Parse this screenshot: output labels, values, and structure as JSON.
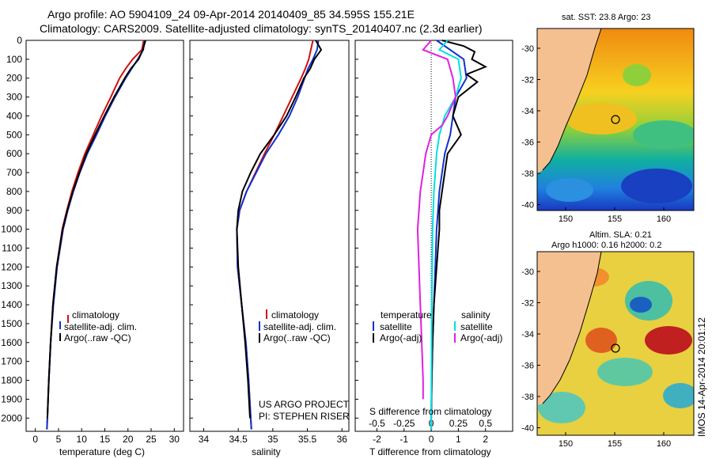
{
  "title_line1": "Argo profile: AO 5904109_24 09-Apr-2014 20140409_85 34.595S 155.21E",
  "title_line2": "Climatology: CARS2009. Satellite-adjusted climatology: synTS_20140407.nc (2.3d earlier)",
  "depth_ticks": [
    0,
    100,
    200,
    300,
    400,
    500,
    600,
    700,
    800,
    900,
    1000,
    1100,
    1200,
    1300,
    1400,
    1500,
    1600,
    1700,
    1800,
    1900,
    2000
  ],
  "colors": {
    "clim": "#d01010",
    "sat": "#1030d0",
    "argo": "#000000",
    "sal_sat": "#00e0e0",
    "sal_argo": "#e020e0"
  },
  "chart_data": [
    {
      "type": "line",
      "panel": "temperature",
      "xlabel": "temperature (deg C)",
      "xticks": [
        0,
        5,
        10,
        15,
        20,
        25,
        30
      ],
      "xlim": [
        -2,
        32
      ],
      "ylim": [
        2070,
        0
      ],
      "legend": [
        "climatology",
        "satellite-adj. clim.",
        "Argo(..raw -QC)"
      ],
      "series": [
        {
          "name": "climatology",
          "depth": [
            0,
            50,
            100,
            150,
            200,
            300,
            400,
            500,
            600,
            700,
            800,
            900,
            1000,
            1200,
            1400,
            1600,
            1800,
            2000,
            2060
          ],
          "values": [
            23.4,
            23.0,
            21.0,
            19.5,
            18.2,
            16.3,
            14.3,
            12.5,
            10.7,
            9.2,
            7.9,
            6.8,
            5.8,
            4.6,
            3.8,
            3.3,
            2.9,
            2.6,
            2.5
          ]
        },
        {
          "name": "satellite-adj. clim.",
          "depth": [
            0,
            50,
            100,
            150,
            200,
            300,
            400,
            500,
            600,
            700,
            800,
            900,
            1000,
            1200,
            1400,
            1600,
            1800,
            2000,
            2060
          ],
          "values": [
            23.6,
            23.3,
            22.1,
            20.8,
            19.5,
            17.2,
            15.1,
            13.2,
            11.2,
            9.6,
            8.2,
            7.0,
            6.0,
            4.7,
            3.9,
            3.3,
            2.9,
            2.6,
            2.5
          ]
        },
        {
          "name": "Argo(..raw -QC)",
          "depth": [
            0,
            50,
            100,
            150,
            200,
            300,
            400,
            500,
            600,
            700,
            800,
            900,
            1000,
            1200,
            1400,
            1600,
            1800,
            2000
          ],
          "values": [
            23.8,
            23.2,
            22.3,
            20.6,
            19.3,
            17.0,
            14.9,
            12.9,
            11.0,
            9.5,
            8.1,
            6.9,
            5.9,
            4.6,
            3.8,
            3.3,
            2.9,
            2.6
          ]
        }
      ]
    },
    {
      "type": "line",
      "panel": "salinity",
      "xlabel": "salinity",
      "xticks": [
        34,
        34.5,
        35,
        35.5,
        36
      ],
      "xlim": [
        33.8,
        36.1
      ],
      "ylim": [
        2070,
        0
      ],
      "legend": [
        "climatology",
        "satellite-adj. clim.",
        "Argo(..raw -QC)"
      ],
      "annotations": [
        "US ARGO PROJECT",
        "PI: STEPHEN RISER"
      ],
      "series": [
        {
          "name": "climatology",
          "depth": [
            0,
            50,
            100,
            150,
            200,
            300,
            400,
            500,
            600,
            700,
            800,
            900,
            1000,
            1200,
            1400,
            1600,
            1800,
            2000,
            2060
          ],
          "values": [
            35.58,
            35.55,
            35.52,
            35.47,
            35.41,
            35.28,
            35.15,
            35.02,
            34.88,
            34.75,
            34.62,
            34.52,
            34.48,
            34.49,
            34.55,
            34.61,
            34.65,
            34.68,
            34.69
          ]
        },
        {
          "name": "satellite-adj. clim.",
          "depth": [
            0,
            50,
            100,
            150,
            200,
            300,
            400,
            500,
            600,
            700,
            800,
            900,
            1000,
            1200,
            1400,
            1600,
            1800,
            2000,
            2060
          ],
          "values": [
            35.66,
            35.64,
            35.58,
            35.51,
            35.46,
            35.36,
            35.24,
            35.08,
            34.9,
            34.76,
            34.62,
            34.52,
            34.48,
            34.49,
            34.55,
            34.61,
            34.65,
            34.68,
            34.69
          ]
        },
        {
          "name": "Argo(..raw -QC)",
          "depth": [
            0,
            50,
            100,
            150,
            200,
            300,
            400,
            500,
            600,
            700,
            800,
            900,
            1000,
            1200,
            1400,
            1600,
            1800,
            2000
          ],
          "values": [
            35.62,
            35.7,
            35.6,
            35.54,
            35.45,
            35.33,
            35.2,
            35.02,
            34.82,
            34.68,
            34.56,
            34.5,
            34.48,
            34.5,
            34.55,
            34.6,
            34.64,
            34.67
          ]
        }
      ]
    },
    {
      "type": "line",
      "panel": "difference",
      "xlabel": "T difference from climatology",
      "xlabel2": "S difference from climatology",
      "xticks": [
        -2,
        -1,
        0,
        1,
        2
      ],
      "xticks_top": [
        "-0.5",
        "-0.25",
        "0",
        "0.25",
        "0.5"
      ],
      "xlim": [
        -2.8,
        3.0
      ],
      "ylim": [
        2070,
        0
      ],
      "legend_temperature": [
        "temperature",
        "satellite",
        "Argo(-adj)"
      ],
      "legend_salinity": [
        "salinity",
        "satellite",
        "Argo(-adj)"
      ],
      "series": [
        {
          "name": "temperature satellite",
          "depth": [
            0,
            100,
            200,
            300,
            400,
            500,
            600,
            700,
            800,
            1000,
            1200,
            1400,
            1600,
            1800,
            2000,
            2060
          ],
          "values": [
            0.2,
            1.2,
            1.3,
            0.9,
            0.8,
            0.7,
            0.5,
            0.4,
            0.3,
            0.2,
            0.15,
            0.1,
            0.05,
            0.02,
            0.0,
            0.0
          ]
        },
        {
          "name": "temperature Argo(-adj)",
          "depth": [
            0,
            30,
            60,
            100,
            140,
            180,
            220,
            300,
            400,
            500,
            600,
            700,
            800,
            900,
            1000,
            1200,
            1400,
            1600,
            1800,
            2000
          ],
          "values": [
            0.4,
            1.2,
            1.6,
            1.5,
            2.0,
            1.3,
            1.7,
            1.0,
            0.8,
            1.1,
            0.6,
            0.5,
            0.4,
            0.3,
            0.3,
            0.2,
            0.1,
            0.05,
            0.02,
            0.0
          ]
        },
        {
          "name": "salinity satellite",
          "depth": [
            0,
            50,
            100,
            200,
            300,
            400,
            500,
            600,
            800,
            1000,
            1400,
            2000,
            2060
          ],
          "values": [
            0.6,
            0.3,
            1.0,
            1.1,
            0.9,
            0.5,
            0.3,
            0.2,
            0.1,
            0.05,
            0.02,
            0.0,
            0.0
          ]
        },
        {
          "name": "salinity Argo(-adj)",
          "depth": [
            0,
            50,
            100,
            200,
            300,
            400,
            450,
            500,
            600,
            700,
            800,
            900,
            1000,
            1200,
            1400,
            1600,
            1800,
            1900
          ],
          "values": [
            0.0,
            -0.3,
            0.6,
            0.8,
            0.9,
            0.6,
            0.4,
            0.0,
            -0.2,
            -0.3,
            -0.4,
            -0.45,
            -0.5,
            -0.45,
            -0.4,
            -0.35,
            -0.3,
            -0.3
          ]
        }
      ]
    }
  ],
  "maps": {
    "sst": {
      "title": "sat. SST: 23.8  Argo: 23"
    },
    "sla": {
      "title_line1": "Altim. SLA: 0.21",
      "title_line2": "Argo h1000: 0.16 h2000: 0.2"
    },
    "yticks": [
      "-30",
      "-32",
      "-34",
      "-36",
      "-38",
      "-40"
    ],
    "xticks": [
      "150",
      "155",
      "160"
    ]
  },
  "stamp": "IMOS 14-Apr-2014 20:01:12"
}
